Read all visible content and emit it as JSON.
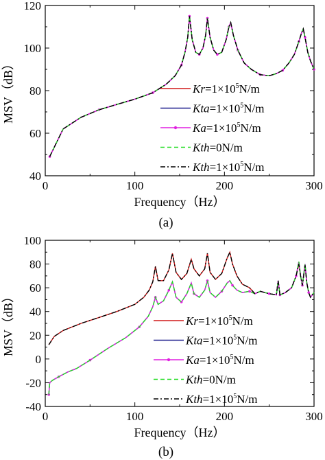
{
  "chart_data": [
    {
      "type": "line",
      "caption": "(a)",
      "xlabel": "Frequency（Hz）",
      "ylabel": "MSV（dB）",
      "xlim": [
        0,
        300
      ],
      "ylim": [
        40,
        120
      ],
      "xticks": [
        0,
        100,
        200,
        300
      ],
      "yticks": [
        40,
        60,
        80,
        100,
        120
      ],
      "legend_position": "lower-right",
      "series": [
        {
          "name": "Kr=1×10^5N/m",
          "label_var": "Kr",
          "label_pre": "=1×10",
          "label_exp": "5",
          "label_post": "N/m",
          "color": "#d01818",
          "style": "solid"
        },
        {
          "name": "Kta=1×10^5N/m",
          "label_var": "Kta",
          "label_pre": "=1×10",
          "label_exp": "5",
          "label_post": "N/m",
          "color": "#1a1a8c",
          "style": "solid"
        },
        {
          "name": "Ka=1×10^5N/m",
          "label_var": "Ka",
          "label_pre": "=1×10",
          "label_exp": "5",
          "label_post": "N/m",
          "color": "#e020e0",
          "style": "marker"
        },
        {
          "name": "Kth=0N/m",
          "label_var": "Kth",
          "label_pre": "=0N/m",
          "label_exp": "",
          "label_post": "",
          "color": "#22dd22",
          "style": "dashed"
        },
        {
          "name": "Kth=1×10^5N/m",
          "label_var": "Kth",
          "label_pre": "=1×10",
          "label_exp": "5",
          "label_post": "N/m",
          "color": "#000000",
          "style": "dashdot"
        }
      ],
      "curves": [
        {
          "applies_to": "all",
          "x": [
            5,
            20,
            40,
            60,
            80,
            100,
            120,
            135,
            145,
            152,
            156,
            159,
            161,
            164,
            168,
            172,
            176,
            179,
            181,
            184,
            188,
            192,
            197,
            202,
            205,
            207,
            210,
            215,
            222,
            230,
            240,
            250,
            258,
            265,
            272,
            278,
            283,
            286,
            288,
            290,
            293,
            296,
            300
          ],
          "y": [
            49,
            62,
            67.5,
            71,
            73.5,
            76,
            79,
            83,
            87,
            92,
            98,
            105,
            115,
            104,
            98,
            97,
            100,
            106,
            114,
            105,
            99,
            97,
            98,
            104,
            110,
            112,
            106,
            99,
            93,
            90,
            87.5,
            87,
            88,
            89.5,
            93,
            97,
            103,
            107,
            109,
            105,
            98,
            94,
            90
          ]
        }
      ]
    },
    {
      "type": "line",
      "caption": "(b)",
      "xlabel": "Frequency（Hz）",
      "ylabel": "MSV（dB）",
      "xlim": [
        0,
        300
      ],
      "ylim": [
        -40,
        100
      ],
      "xticks": [
        0,
        100,
        200,
        300
      ],
      "yticks": [
        -40,
        -20,
        0,
        20,
        40,
        60,
        80,
        100
      ],
      "legend_position": "lower-right",
      "series": [
        {
          "name": "Kr=1×10^5N/m",
          "label_var": "Kr",
          "label_pre": "=1×10",
          "label_exp": "5",
          "label_post": "N/m",
          "color": "#d01818",
          "style": "solid"
        },
        {
          "name": "Kta=1×10^5N/m",
          "label_var": "Kta",
          "label_pre": "=1×10",
          "label_exp": "5",
          "label_post": "N/m",
          "color": "#1a1a8c",
          "style": "solid"
        },
        {
          "name": "Ka=1×10^5N/m",
          "label_var": "Ka",
          "label_pre": "=1×10",
          "label_exp": "5",
          "label_post": "N/m",
          "color": "#e020e0",
          "style": "marker"
        },
        {
          "name": "Kth=0N/m",
          "label_var": "Kth",
          "label_pre": "=0N/m",
          "label_exp": "",
          "label_post": "",
          "color": "#22dd22",
          "style": "dashed"
        },
        {
          "name": "Kth=1×10^5N/m",
          "label_var": "Kth",
          "label_pre": "=1×10",
          "label_exp": "5",
          "label_post": "N/m",
          "color": "#000000",
          "style": "dashdot"
        }
      ],
      "curves": [
        {
          "applies_to": [
            "Kr=1×10^5N/m",
            "Kth=1×10^5N/m"
          ],
          "x": [
            4,
            10,
            20,
            40,
            60,
            80,
            100,
            110,
            116,
            120,
            123,
            126,
            132,
            138,
            142,
            146,
            152,
            158,
            163,
            166,
            172,
            178,
            181,
            184,
            190,
            197,
            203,
            206,
            209,
            214,
            220,
            228,
            234,
            240,
            250,
            258,
            260,
            262,
            268,
            275,
            280,
            283,
            285,
            287,
            290,
            292,
            294,
            296,
            300
          ],
          "y": [
            12,
            19,
            24,
            30,
            35,
            40,
            46,
            52,
            58,
            65,
            78,
            66,
            66,
            75,
            89,
            73,
            67,
            72,
            84,
            76,
            70,
            76,
            89,
            73,
            67,
            72,
            85,
            90,
            80,
            70,
            63,
            60,
            55,
            57,
            55,
            54,
            66,
            54,
            56,
            60,
            70,
            80,
            70,
            62,
            79,
            64,
            56,
            52,
            56
          ]
        },
        {
          "applies_to": [
            "Kta=1×10^5N/m",
            "Ka=1×10^5N/m",
            "Kth=0N/m"
          ],
          "x": [
            4,
            5,
            8,
            15,
            25,
            35,
            50,
            70,
            90,
            105,
            115,
            120,
            123,
            126,
            132,
            138,
            142,
            146,
            152,
            158,
            163,
            166,
            172,
            178,
            181,
            184,
            190,
            197,
            203,
            206,
            209,
            214,
            220,
            228,
            234,
            240,
            250,
            258,
            260,
            262,
            268,
            275,
            280,
            283,
            285,
            287,
            290,
            292,
            294,
            296,
            300
          ],
          "y": [
            -30,
            -20,
            -18,
            -15,
            -11,
            -8,
            -1,
            9,
            18,
            27,
            36,
            44,
            52,
            46,
            49,
            58,
            65,
            52,
            48,
            55,
            64,
            55,
            52,
            58,
            66,
            56,
            52,
            57,
            64,
            66,
            62,
            58,
            56,
            57,
            55,
            57,
            55,
            54,
            66,
            54,
            56,
            60,
            70,
            82,
            70,
            62,
            80,
            64,
            56,
            52,
            56
          ]
        }
      ]
    }
  ]
}
